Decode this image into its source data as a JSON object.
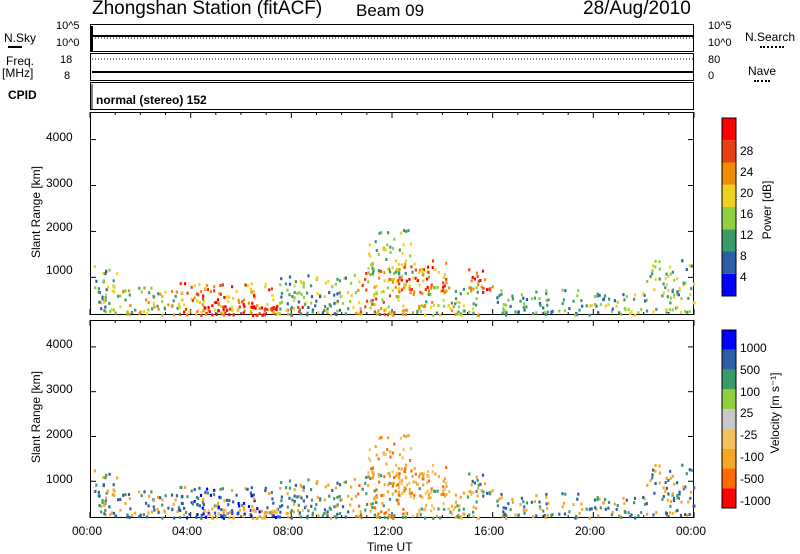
{
  "header": {
    "station": "Zhongshan Station (fitACF)",
    "beam": "Beam 09",
    "date": "28/Aug/2010"
  },
  "top_panels": {
    "nsky": {
      "label": "N.Sky",
      "left_ticks": [
        "10^5",
        "10^0"
      ],
      "right_ticks": [
        "10^5",
        "10^0"
      ],
      "right_label": "N.Search"
    },
    "freq": {
      "label": "Freq.",
      "unit": "[MHz]",
      "left_ticks": [
        "18",
        "8"
      ],
      "right_ticks": [
        "80",
        "0"
      ],
      "right_label": "Nave"
    },
    "cpid": {
      "label": "CPID",
      "mode": "normal (stereo) 152"
    }
  },
  "colors": {
    "power_scale": [
      "#0000ff",
      "#2a5fa8",
      "#3a9a6a",
      "#90d040",
      "#f0d020",
      "#f08c00",
      "#e84010",
      "#ff0000"
    ],
    "velocity_scale": [
      "#ff0000",
      "#ff6a00",
      "#f5a623",
      "#f5c060",
      "#c8c8c8",
      "#90d040",
      "#3a9a6a",
      "#2a5fa8",
      "#0000ff"
    ]
  },
  "chart_data": [
    {
      "type": "heatmap",
      "title": "Power",
      "ylabel": "Slant Range [km]",
      "xlabel": "",
      "x_ticks": [
        "00:00",
        "04:00",
        "08:00",
        "12:00",
        "16:00",
        "20:00",
        "00:00"
      ],
      "y_ticks": [
        "1000",
        "2000",
        "3000",
        "4000"
      ],
      "ylim": [
        180,
        4600
      ],
      "xlim": [
        0,
        24
      ],
      "colorbar": {
        "label": "Power [dB]",
        "ticks": [
          "4",
          "8",
          "12",
          "16",
          "20",
          "24",
          "28"
        ]
      }
    },
    {
      "type": "heatmap",
      "title": "Velocity",
      "ylabel": "Slant Range [km]",
      "xlabel": "Time UT",
      "x_ticks": [
        "00:00",
        "04:00",
        "08:00",
        "12:00",
        "16:00",
        "20:00",
        "00:00"
      ],
      "y_ticks": [
        "1000",
        "2000",
        "3000",
        "4000"
      ],
      "ylim": [
        180,
        4600
      ],
      "xlim": [
        0,
        24
      ],
      "colorbar": {
        "label": "Velocity [m s⁻¹]",
        "ticks": [
          "1000",
          "500",
          "100",
          "25",
          "-25",
          "-100",
          "-500",
          "-1000"
        ]
      }
    }
  ]
}
